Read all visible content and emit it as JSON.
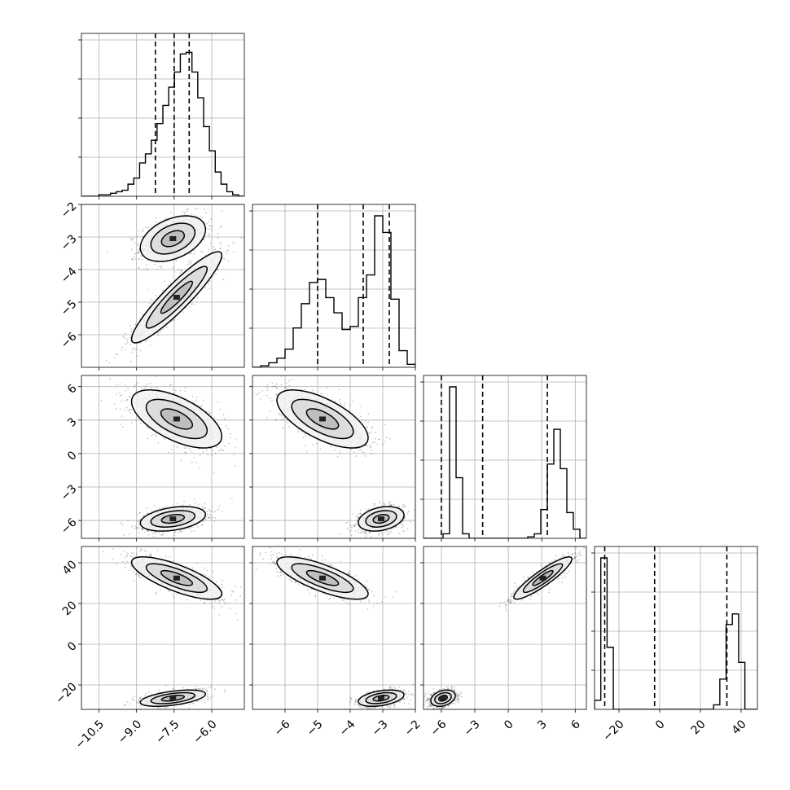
{
  "chart_data": {
    "type": "corner",
    "grid": true,
    "parameters": [
      {
        "id": "p0",
        "range": [
          -11.2,
          -4.7
        ],
        "ticks": [
          "−10.5",
          "−9.0",
          "−7.5",
          "−6.0"
        ],
        "tick_values": [
          -10.5,
          -9.0,
          -7.5,
          -6.0
        ],
        "quantiles": [
          -8.25,
          -7.5,
          -6.9
        ],
        "hist_peak": 0.95,
        "hist_bins": [
          0.0,
          0.0,
          0.0,
          0.01,
          0.01,
          0.02,
          0.03,
          0.04,
          0.08,
          0.12,
          0.22,
          0.28,
          0.37,
          0.48,
          0.6,
          0.72,
          0.82,
          0.94,
          0.95,
          0.82,
          0.65,
          0.46,
          0.3,
          0.16,
          0.08,
          0.03,
          0.01,
          0.0
        ]
      },
      {
        "id": "p1",
        "range": [
          -7.0,
          -2.0
        ],
        "ticks": [
          "−6",
          "−5",
          "−4",
          "−3",
          "−2"
        ],
        "tick_values": [
          -6,
          -5,
          -4,
          -3,
          -2
        ],
        "y_ticks": [
          "−2",
          "−3",
          "−4",
          "−5",
          "−6"
        ],
        "quantiles": [
          -5.0,
          -3.6,
          -2.8
        ],
        "hist_peak": 1.0,
        "hist_bins": [
          0.0,
          0.01,
          0.03,
          0.06,
          0.12,
          0.26,
          0.42,
          0.56,
          0.58,
          0.46,
          0.36,
          0.25,
          0.27,
          0.46,
          0.61,
          1.0,
          0.89,
          0.45,
          0.11,
          0.02
        ]
      },
      {
        "id": "p2",
        "range": [
          -7.6,
          7.0
        ],
        "ticks": [
          "−6",
          "−3",
          "0",
          "3",
          "6"
        ],
        "tick_values": [
          -6,
          -3,
          0,
          3,
          6
        ],
        "y_ticks": [
          "6",
          "3",
          "0",
          "−3",
          "−6"
        ],
        "quantiles": [
          -6.0,
          -2.3,
          3.5
        ],
        "hist_peak": 1.0,
        "hist_bins": [
          0.0,
          0.0,
          0.0,
          0.03,
          1.0,
          0.4,
          0.03,
          0.0,
          0.0,
          0.0,
          0.0,
          0.0,
          0.0,
          0.0,
          0.0,
          0.0,
          0.01,
          0.03,
          0.19,
          0.49,
          0.72,
          0.46,
          0.17,
          0.06,
          0.0
        ]
      },
      {
        "id": "p3",
        "range": [
          -32.0,
          48.0
        ],
        "ticks": [
          "−20",
          "0",
          "20",
          "40"
        ],
        "tick_values": [
          -20,
          0,
          20,
          40
        ],
        "y_ticks": [
          "40",
          "20",
          "0",
          "−20"
        ],
        "quantiles": [
          -27.0,
          -2.5,
          33.0
        ],
        "hist_peak": 1.0,
        "hist_bins": [
          0.06,
          1.0,
          0.41,
          0.0,
          0.0,
          0.0,
          0.0,
          0.0,
          0.0,
          0.0,
          0.0,
          0.0,
          0.0,
          0.0,
          0.0,
          0.0,
          0.0,
          0.0,
          0.0,
          0.03,
          0.2,
          0.56,
          0.63,
          0.31,
          0.0,
          0.0
        ]
      }
    ],
    "modes": [
      {
        "means": [
          -7.55,
          -3.05,
          -5.85,
          -26.5
        ],
        "sds": [
          0.65,
          0.35,
          0.55,
          2.0
        ],
        "correlations": {
          "0-1": 0.4,
          "0-2": 0.35,
          "0-3": 0.5,
          "1-2": 0.3,
          "1-3": 0.4,
          "2-3": 0.3
        }
      },
      {
        "means": [
          -7.4,
          -4.85,
          3.1,
          32.5
        ],
        "sds": [
          0.9,
          0.7,
          1.3,
          5.2
        ],
        "correlations": {
          "0-1": 0.92,
          "0-2": -0.6,
          "0-3": -0.75,
          "1-2": -0.65,
          "1-3": -0.75,
          "2-3": 0.9
        }
      }
    ]
  }
}
